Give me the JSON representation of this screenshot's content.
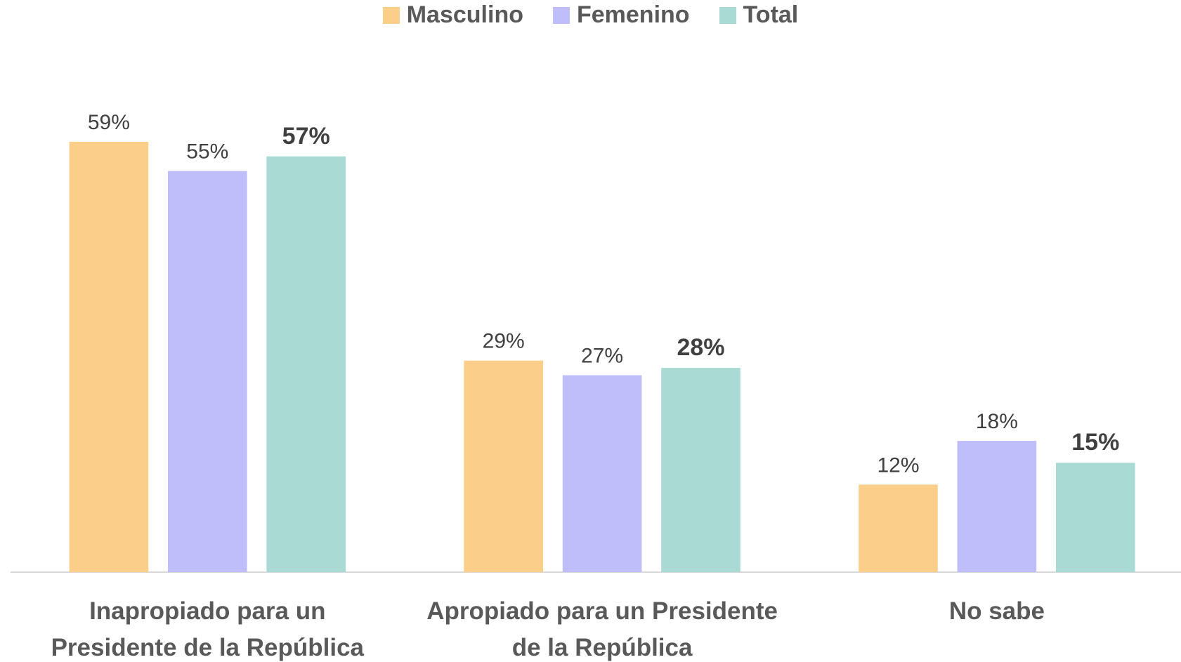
{
  "chart_data": {
    "type": "bar",
    "categories": [
      "Inapropiado para un Presidente de la República",
      "Apropiado para un Presidente de la República",
      "No sabe"
    ],
    "series": [
      {
        "name": "Masculino",
        "color": "#fbcf8a",
        "values": [
          59,
          29,
          12
        ],
        "value_labels": [
          "59%",
          "29%",
          "12%"
        ],
        "label_weight": "normal"
      },
      {
        "name": "Femenino",
        "color": "#c0befa",
        "values": [
          55,
          27,
          18
        ],
        "value_labels": [
          "55%",
          "27%",
          "18%"
        ],
        "label_weight": "normal"
      },
      {
        "name": "Total",
        "color": "#a9dad3",
        "values": [
          57,
          28,
          15
        ],
        "value_labels": [
          "57%",
          "28%",
          "15%"
        ],
        "label_weight": "bold"
      }
    ],
    "legend": "top",
    "grid": false
  }
}
